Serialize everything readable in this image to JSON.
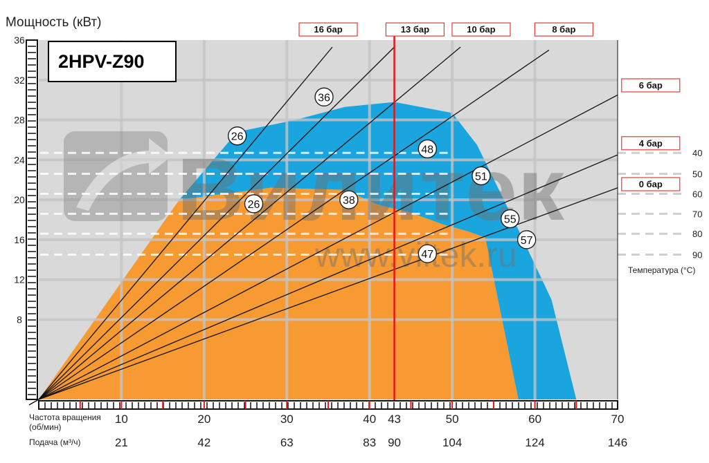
{
  "chart_data": {
    "type": "area",
    "title": "2HPV-Z90",
    "ylabel": "Мощность (кВт)",
    "ylim": [
      0,
      36
    ],
    "y_ticks": [
      8,
      12,
      16,
      20,
      24,
      28,
      32,
      36
    ],
    "xlim": [
      0,
      70
    ],
    "x_ticks": [
      10,
      20,
      30,
      40,
      43,
      50,
      60,
      70
    ],
    "x_label_1": "Частота вращения",
    "x_label_1b": "(об/мин)",
    "x_label_2": "Подача (м³/ч)",
    "flow_ticks": [
      {
        "x": 10,
        "label": "21"
      },
      {
        "x": 20,
        "label": "42"
      },
      {
        "x": 30,
        "label": "63"
      },
      {
        "x": 40,
        "label": "83"
      },
      {
        "x": 43,
        "label": "90"
      },
      {
        "x": 50,
        "label": "104"
      },
      {
        "x": 60,
        "label": "124"
      },
      {
        "x": 70,
        "label": "146"
      }
    ],
    "marker_line": {
      "x": 43,
      "label": "13 бар",
      "color": "#e8141b"
    },
    "colors": {
      "plot_bg": "#d9d9da",
      "orange": "#f79a32",
      "blue": "#1aa5de",
      "grid": "#c4c4c6",
      "label_border": "#e03b3b"
    },
    "region_orange": [
      [
        0,
        0
      ],
      [
        17,
        20
      ],
      [
        28,
        21.2
      ],
      [
        37,
        21
      ],
      [
        41,
        19.5
      ],
      [
        45,
        18.7
      ],
      [
        49,
        17.5
      ],
      [
        52,
        16.8
      ],
      [
        54,
        16.2
      ],
      [
        58,
        0
      ]
    ],
    "region_blue": [
      [
        17,
        20
      ],
      [
        24,
        26.8
      ],
      [
        31,
        28
      ],
      [
        37,
        29.3
      ],
      [
        43,
        29.8
      ],
      [
        50,
        28.7
      ],
      [
        53,
        25.5
      ],
      [
        58,
        17
      ],
      [
        62,
        10
      ],
      [
        65,
        0
      ],
      [
        58,
        0
      ],
      [
        54,
        16.2
      ],
      [
        52,
        16.8
      ],
      [
        49,
        17.5
      ],
      [
        45,
        18.7
      ],
      [
        41,
        19.5
      ],
      [
        37,
        21
      ],
      [
        28,
        21.2
      ]
    ],
    "pressure_lines": [
      {
        "label": "16 бар",
        "end": [
          35.5,
          35.3
        ]
      },
      {
        "label": "13 бар",
        "end": [
          43,
          35.3
        ]
      },
      {
        "label": "10 бар",
        "end": [
          51,
          35.3
        ]
      },
      {
        "label": "8 бар",
        "end": [
          61.7,
          35
        ]
      },
      {
        "label": "6 бар",
        "end": [
          70,
          30.5
        ]
      },
      {
        "label": "4 бар",
        "end": [
          70,
          24.5
        ]
      },
      {
        "label": "0 бар",
        "end": [
          70,
          21.2
        ]
      }
    ],
    "pressure_labels": [
      {
        "label": "16 бар",
        "x": 35,
        "y": 37.1
      },
      {
        "label": "13 бар",
        "x": 45.5,
        "y": 37.1
      },
      {
        "label": "10 бар",
        "x": 53.5,
        "y": 37.1
      },
      {
        "label": "8 бар",
        "x": 63.5,
        "y": 37.1
      },
      {
        "label": "6 бар",
        "x": 74,
        "y": 31.5
      },
      {
        "label": "4 бар",
        "x": 74,
        "y": 25.7
      },
      {
        "label": "0 бар",
        "x": 74,
        "y": 21.6
      }
    ],
    "temperature_lines": [
      {
        "label": "40",
        "y": 24.7
      },
      {
        "label": "50",
        "y": 22.6
      },
      {
        "label": "60",
        "y": 20.6
      },
      {
        "label": "70",
        "y": 18.6
      },
      {
        "label": "80",
        "y": 16.6
      },
      {
        "label": "90",
        "y": 14.5
      }
    ],
    "temperature_axis_label": "Температура (°C)",
    "circle_labels": [
      {
        "x": 24,
        "y": 26.4,
        "label": "26"
      },
      {
        "x": 34.5,
        "y": 30.3,
        "label": "36"
      },
      {
        "x": 26,
        "y": 19.6,
        "label": "26"
      },
      {
        "x": 37.5,
        "y": 20,
        "label": "38"
      },
      {
        "x": 47,
        "y": 25.1,
        "label": "48"
      },
      {
        "x": 53.5,
        "y": 22.4,
        "label": "51"
      },
      {
        "x": 57,
        "y": 18.1,
        "label": "55"
      },
      {
        "x": 59,
        "y": 16,
        "label": "57"
      },
      {
        "x": 47,
        "y": 14.6,
        "label": "47"
      }
    ]
  },
  "watermark": {
    "brand": "Вилитек",
    "url": "www.viltek.ru",
    "icon": "arrow-logo-icon"
  }
}
